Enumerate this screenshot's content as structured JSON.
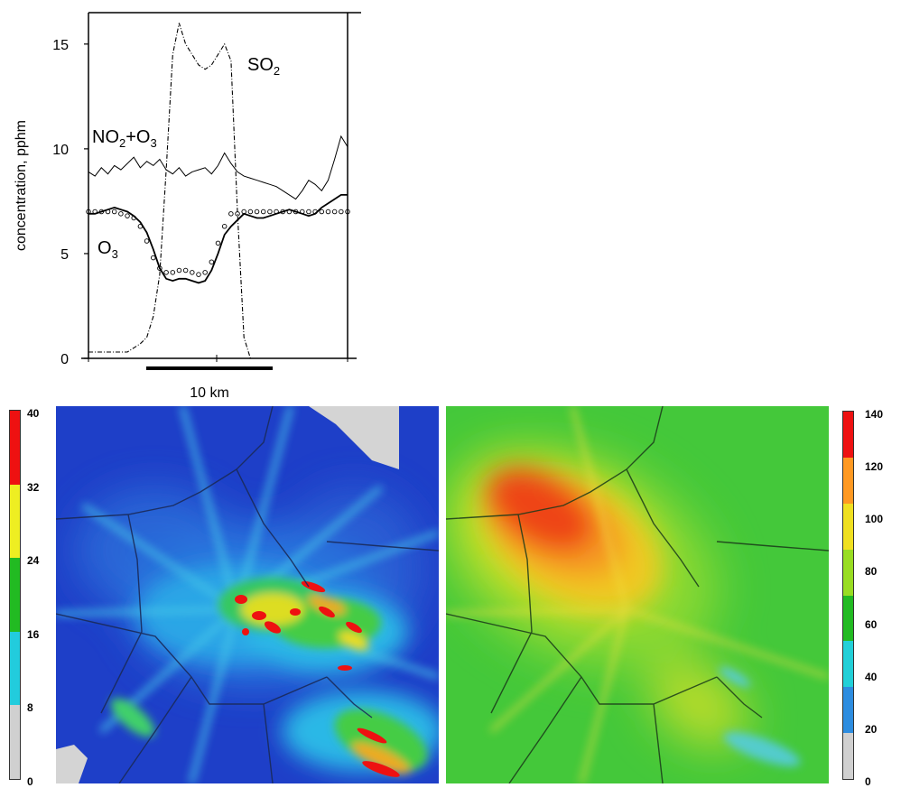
{
  "chart_data": [
    {
      "type": "line",
      "ylabel": "concentration, pphm",
      "ylim": [
        0,
        16.5
      ],
      "yticks": [
        0,
        5,
        10,
        15
      ],
      "scale_bar": "10 km",
      "series": [
        {
          "name": "SO2",
          "style": "dash-dot",
          "x": [
            0,
            1,
            2,
            3,
            4,
            5,
            6,
            7,
            8,
            9,
            10,
            11,
            12,
            13,
            14,
            15,
            16,
            17,
            18,
            19,
            20,
            21,
            22,
            23,
            24,
            25,
            26,
            27,
            28,
            29,
            30,
            31,
            32,
            33,
            34,
            35,
            36,
            37,
            38,
            39,
            40
          ],
          "y": [
            0.3,
            0.3,
            0.3,
            0.3,
            0.3,
            0.3,
            0.3,
            0.5,
            0.7,
            1.0,
            2.0,
            4.0,
            9.0,
            14.5,
            16.0,
            15.0,
            14.5,
            14.0,
            13.8,
            14.0,
            14.5,
            15.0,
            14.2,
            7.0,
            1.0,
            0.0,
            0,
            0,
            0,
            0,
            0,
            0,
            0,
            0,
            0,
            0,
            0,
            0,
            0,
            0,
            0
          ]
        },
        {
          "name": "NO2+O3",
          "style": "thin-solid",
          "x": [
            0,
            1,
            2,
            3,
            4,
            5,
            6,
            7,
            8,
            9,
            10,
            11,
            12,
            13,
            14,
            15,
            16,
            17,
            18,
            19,
            20,
            21,
            22,
            23,
            24,
            25,
            26,
            27,
            28,
            29,
            30,
            31,
            32,
            33,
            34,
            35,
            36,
            37,
            38,
            39,
            40
          ],
          "y": [
            8.9,
            8.7,
            9.1,
            8.8,
            9.2,
            9.0,
            9.3,
            9.6,
            9.1,
            9.4,
            9.2,
            9.5,
            9.0,
            8.8,
            9.1,
            8.7,
            8.9,
            9.0,
            9.1,
            8.8,
            9.2,
            9.8,
            9.3,
            8.9,
            8.7,
            8.6,
            8.5,
            8.4,
            8.3,
            8.2,
            8.0,
            7.8,
            7.6,
            8.0,
            8.5,
            8.3,
            8.0,
            8.5,
            9.5,
            10.6,
            10.1
          ]
        },
        {
          "name": "O3 (solid)",
          "style": "solid",
          "x": [
            0,
            1,
            2,
            3,
            4,
            5,
            6,
            7,
            8,
            9,
            10,
            11,
            12,
            13,
            14,
            15,
            16,
            17,
            18,
            19,
            20,
            21,
            22,
            23,
            24,
            25,
            26,
            27,
            28,
            29,
            30,
            31,
            32,
            33,
            34,
            35,
            36,
            37,
            38,
            39,
            40
          ],
          "y": [
            6.9,
            6.9,
            7.0,
            7.1,
            7.2,
            7.1,
            7.0,
            6.8,
            6.5,
            6.0,
            5.2,
            4.3,
            3.8,
            3.7,
            3.8,
            3.8,
            3.7,
            3.6,
            3.7,
            4.2,
            5.0,
            5.9,
            6.3,
            6.6,
            6.9,
            6.8,
            6.7,
            6.7,
            6.8,
            6.9,
            7.0,
            7.1,
            7.0,
            6.9,
            6.8,
            6.9,
            7.2,
            7.4,
            7.6,
            7.8,
            7.8
          ]
        },
        {
          "name": "O3 (circles)",
          "style": "markers",
          "x": [
            0,
            1,
            2,
            3,
            4,
            5,
            6,
            7,
            8,
            9,
            10,
            11,
            12,
            13,
            14,
            15,
            16,
            17,
            18,
            19,
            20,
            21,
            22,
            23,
            24,
            25,
            26,
            27,
            28,
            29,
            30,
            31,
            32,
            33,
            34,
            35,
            36,
            37,
            38,
            39,
            40
          ],
          "y": [
            7.0,
            7.0,
            7.0,
            7.0,
            7.0,
            6.9,
            6.8,
            6.7,
            6.3,
            5.6,
            4.8,
            4.3,
            4.1,
            4.1,
            4.2,
            4.2,
            4.1,
            4.0,
            4.1,
            4.6,
            5.5,
            6.3,
            6.9,
            6.9,
            7.0,
            7.0,
            7.0,
            7.0,
            7.0,
            7.0,
            7.0,
            7.0,
            7.0,
            7.0,
            7.0,
            7.0,
            7.0,
            7.0,
            7.0,
            7.0,
            7.0
          ]
        }
      ],
      "labels": {
        "so2": {
          "main": "SO",
          "sub": "2"
        },
        "no2o3": {
          "a": "NO",
          "sub1": "2",
          "b": "+O",
          "sub2": "3"
        },
        "o3": {
          "main": "O",
          "sub": "3"
        }
      }
    },
    {
      "type": "heatmap",
      "colorbar": {
        "ticks": [
          "0",
          "8",
          "16",
          "24",
          "32",
          "40"
        ],
        "colors": [
          "#d0d0d0",
          "#22ccdd",
          "#22bb22",
          "#eeee22",
          "#ee1111"
        ]
      }
    },
    {
      "type": "heatmap",
      "colorbar": {
        "ticks": [
          "0",
          "20",
          "40",
          "60",
          "80",
          "100",
          "120",
          "140"
        ],
        "colors": [
          "#d0d0d0",
          "#2d8de0",
          "#22d0d8",
          "#22bb22",
          "#99dd22",
          "#f0e020",
          "#ff9922",
          "#ee1111"
        ]
      }
    }
  ]
}
